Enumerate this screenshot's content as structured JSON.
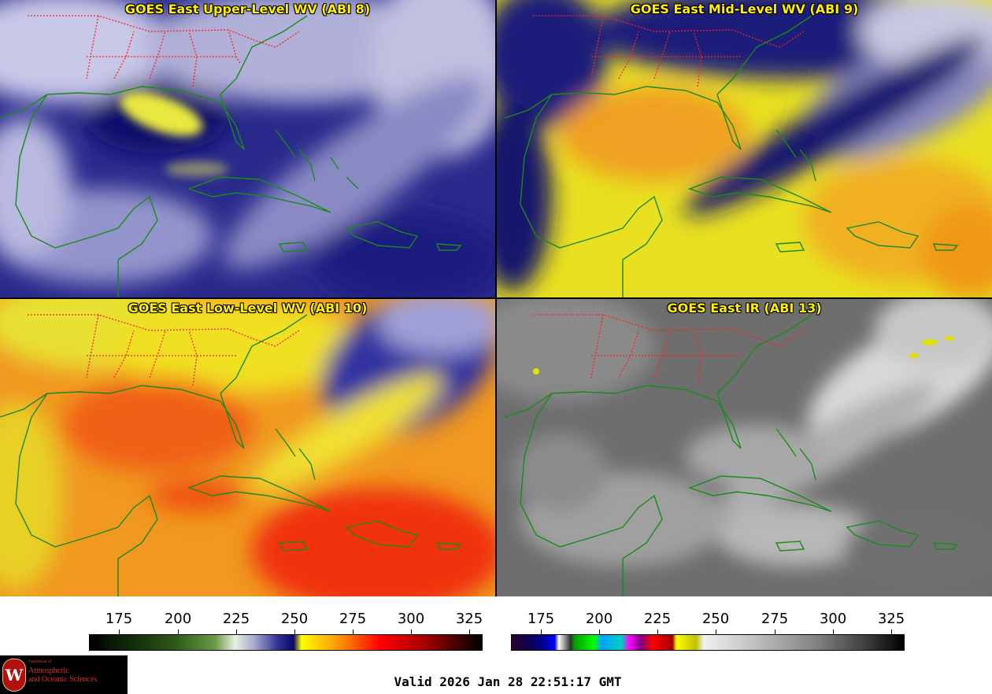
{
  "panels": [
    {
      "title": "GOES East Upper-Level WV (ABI 8)"
    },
    {
      "title": "GOES East Mid-Level WV (ABI 9)"
    },
    {
      "title": "GOES East Low-Level WV (ABI 10)"
    },
    {
      "title": "GOES East IR (ABI 13)"
    }
  ],
  "colorbars": {
    "wv_ticks": [
      "175",
      "200",
      "225",
      "250",
      "275",
      "300",
      "325"
    ],
    "ir_ticks": [
      "175",
      "200",
      "225",
      "250",
      "275",
      "300",
      "325"
    ]
  },
  "logo": {
    "seal_letter": "W",
    "department": "Department of",
    "line1": "Atmospheric",
    "line2": "and Oceanic Sciences"
  },
  "valid_time": "Valid 2026 Jan 28 22:51:17 GMT",
  "colors": {
    "title_text": "#ffee00",
    "state_borders": "#ff2020",
    "coastlines": "#1a8a1a"
  }
}
